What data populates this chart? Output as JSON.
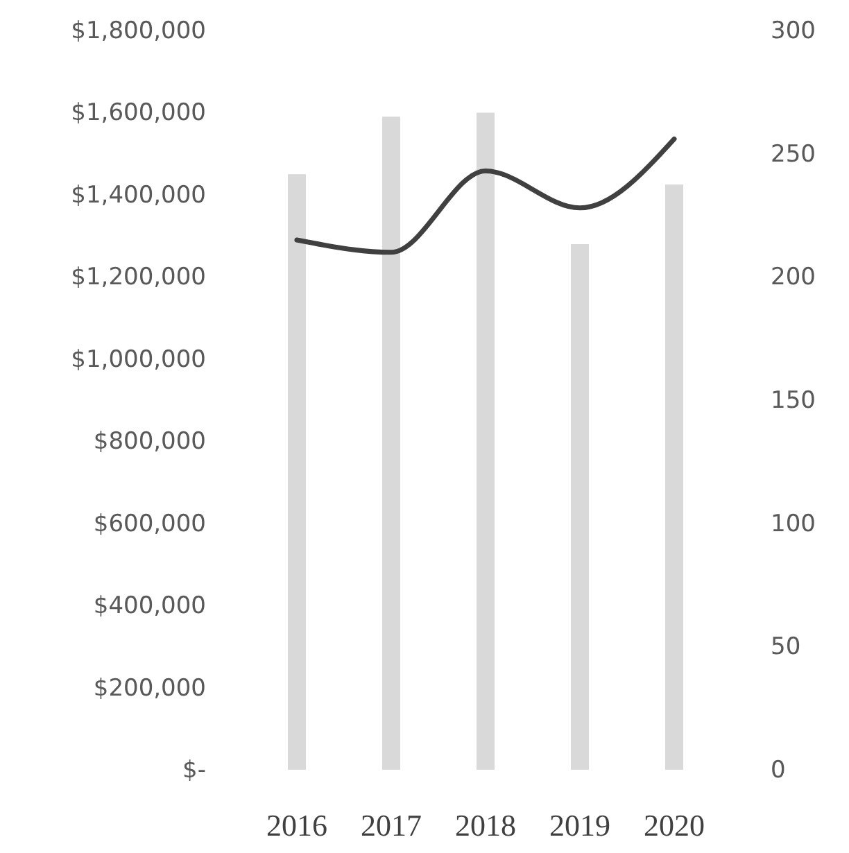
{
  "chart_data": {
    "type": "bar",
    "categories": [
      "2016",
      "2017",
      "2018",
      "2019",
      "2020"
    ],
    "series": [
      {
        "color": "#d9d9d9",
        "values": [
          1450000,
          1590000,
          1600000,
          1280000,
          1425000
        ]
      },
      {
        "type": "line",
        "axis": "y2",
        "color": "#404040",
        "values": [
          215,
          210,
          243,
          228,
          256
        ]
      }
    ],
    "ylim": [
      0,
      1800000
    ],
    "yticks": [
      {
        "value": 0,
        "label": "$-"
      },
      {
        "value": 200000,
        "label": "$200,000"
      },
      {
        "value": 400000,
        "label": "$400,000"
      },
      {
        "value": 600000,
        "label": "$600,000"
      },
      {
        "value": 800000,
        "label": "$800,000"
      },
      {
        "value": 1000000,
        "label": "$1,000,000"
      },
      {
        "value": 1200000,
        "label": "$1,200,000"
      },
      {
        "value": 1400000,
        "label": "$1,400,000"
      },
      {
        "value": 1600000,
        "label": "$1,600,000"
      },
      {
        "value": 1800000,
        "label": "$1,800,000"
      }
    ],
    "y2lim": [
      0,
      300
    ],
    "y2ticks": [
      0,
      50,
      100,
      150,
      200,
      250,
      300
    ]
  }
}
